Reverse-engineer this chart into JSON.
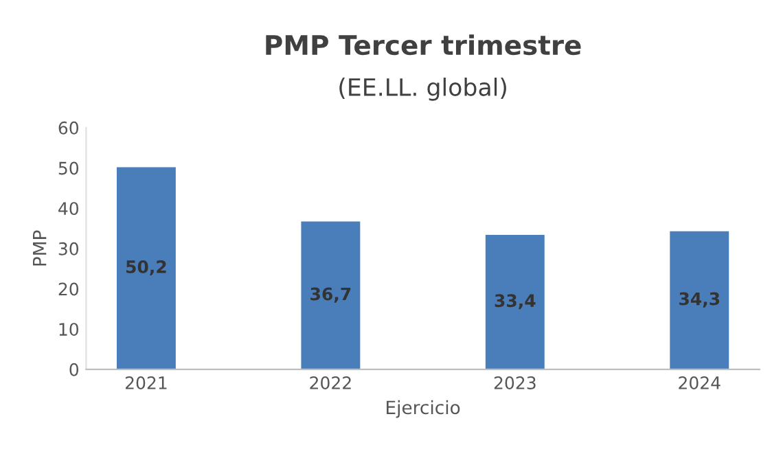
{
  "chart_data": {
    "type": "bar",
    "title": "PMP Tercer trimestre",
    "subtitle": "(EE.LL. global)",
    "xlabel": "Ejercicio",
    "ylabel": "PMP",
    "categories": [
      "2021",
      "2022",
      "2023",
      "2024"
    ],
    "values": [
      50.2,
      36.7,
      33.4,
      34.3
    ],
    "value_labels": [
      "50,2",
      "36,7",
      "33,4",
      "34,3"
    ],
    "color": "#4a7ebb",
    "ylim": [
      0,
      60
    ],
    "yticks": [
      0,
      10,
      20,
      30,
      40,
      50,
      60
    ],
    "grid": false,
    "legend": false
  }
}
